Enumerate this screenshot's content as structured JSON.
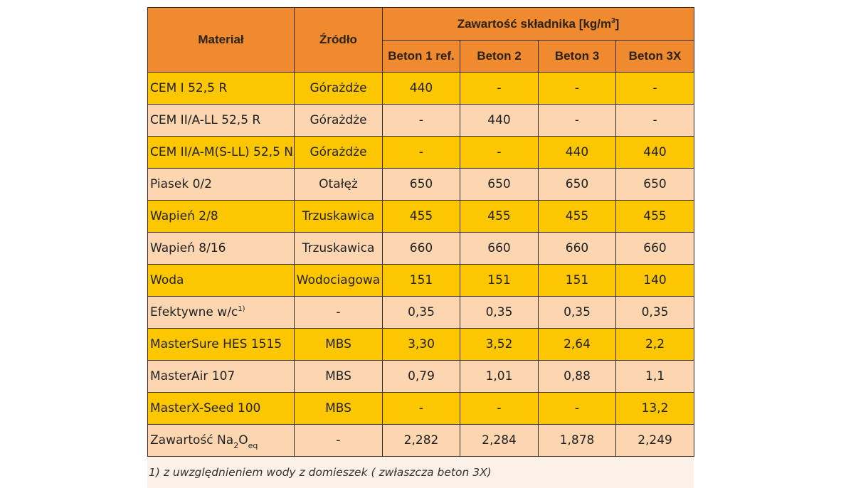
{
  "header": {
    "material": "Materiał",
    "source": "Źródło",
    "content_main": "Zawartość składnika [kg/m",
    "content_sup": "3",
    "content_end": "]",
    "concretes": [
      "Beton 1 ref.",
      "Beton 2",
      "Beton 3",
      "Beton 3X"
    ]
  },
  "rows": [
    {
      "material": "CEM I 52,5 R",
      "source": "Górażdże",
      "values": [
        "440",
        "-",
        "-",
        "-"
      ]
    },
    {
      "material": "CEM II/A-LL 52,5 R",
      "source": "Górażdże",
      "values": [
        "-",
        "440",
        "-",
        "-"
      ]
    },
    {
      "material": "CEM II/A-M(S-LL) 52,5 N",
      "source": "Górażdże",
      "values": [
        "-",
        "-",
        "440",
        "440"
      ]
    },
    {
      "material": "Piasek 0/2",
      "source": "Otałęż",
      "values": [
        "650",
        "650",
        "650",
        "650"
      ]
    },
    {
      "material": "Wapień 2/8",
      "source": "Trzuskawica",
      "values": [
        "455",
        "455",
        "455",
        "455"
      ]
    },
    {
      "material": "Wapień 8/16",
      "source": "Trzuskawica",
      "values": [
        "660",
        "660",
        "660",
        "660"
      ]
    },
    {
      "material": "Woda",
      "source": "Wodociagowa",
      "values": [
        "151",
        "151",
        "151",
        "140"
      ]
    },
    {
      "material": "Efektywne w/c",
      "material_sup": "1)",
      "source": "-",
      "values": [
        "0,35",
        "0,35",
        "0,35",
        "0,35"
      ]
    },
    {
      "material": "MasterSure HES 1515",
      "source": "MBS",
      "values": [
        "3,30",
        "3,52",
        "2,64",
        "2,2"
      ]
    },
    {
      "material": "MasterAir 107",
      "source": "MBS",
      "values": [
        "0,79",
        "1,01",
        "0,88",
        "1,1"
      ]
    },
    {
      "material": "MasterX-Seed 100",
      "source": "MBS",
      "values": [
        "-",
        "-",
        "-",
        "13,2"
      ]
    },
    {
      "material": "Zawartość Na",
      "material_sub1": "2",
      "material_mid": "O",
      "material_sub2": "eq",
      "source": "-",
      "values": [
        "2,282",
        "2,284",
        "1,878",
        "2,249"
      ]
    }
  ],
  "footnote": "1) z uwzględnieniem wody z domieszek ( zwłaszcza beton 3X)",
  "colors": {
    "header": "#ef8a2e",
    "row_yellow": "#fdc700",
    "row_peach": "#fbd6b0"
  }
}
